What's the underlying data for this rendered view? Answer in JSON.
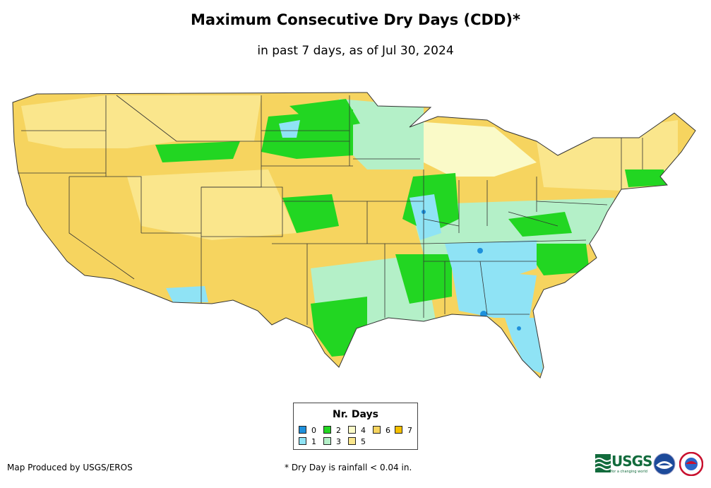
{
  "header": {
    "title": "Maximum Consecutive Dry Days (CDD)*",
    "subtitle": "in past 7 days, as of Jul 30, 2024"
  },
  "legend": {
    "title": "Nr. Days",
    "items": [
      {
        "label": "0",
        "color": "#1e90dc"
      },
      {
        "label": "1",
        "color": "#8fe3f5"
      },
      {
        "label": "2",
        "color": "#22d622"
      },
      {
        "label": "3",
        "color": "#b4f0c8"
      },
      {
        "label": "4",
        "color": "#fafac8"
      },
      {
        "label": "5",
        "color": "#fae68c"
      },
      {
        "label": "6",
        "color": "#f6d45f"
      },
      {
        "label": "7",
        "color": "#f5c000"
      }
    ]
  },
  "footer": {
    "credit": "Map Produced by USGS/EROS",
    "footnote": "* Dry Day is rainfall < 0.04 in.",
    "usgs_logo": "USGS",
    "usgs_tagline": "science for a changing world"
  },
  "logos": [
    "usgs-logo",
    "noaa-logo",
    "nws-logo"
  ]
}
